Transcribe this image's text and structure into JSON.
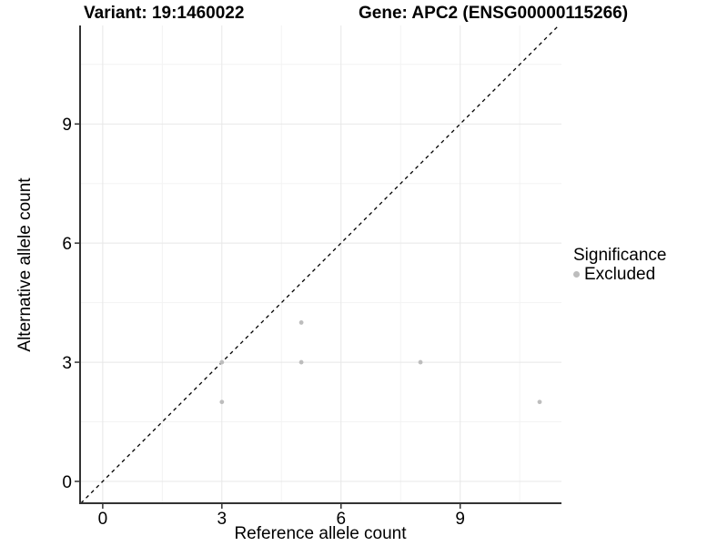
{
  "titles": {
    "variant": "Variant: 19:1460022",
    "gene": "Gene: APC2 (ENSG00000115266)"
  },
  "legend": {
    "title": "Significance",
    "items": [
      {
        "label": "Excluded",
        "color": "#bdbdbd"
      }
    ]
  },
  "chart_data": {
    "type": "scatter",
    "title": "",
    "xlabel": "Reference allele count",
    "ylabel": "Alternative allele count",
    "xlim": [
      -0.57,
      11.55
    ],
    "ylim": [
      -0.55,
      11.48
    ],
    "x_ticks": [
      0,
      3,
      6,
      9
    ],
    "y_ticks": [
      0,
      3,
      6,
      9
    ],
    "x_minor_ticks": [
      1.5,
      4.5,
      7.5,
      10.5
    ],
    "y_minor_ticks": [
      1.5,
      4.5,
      7.5,
      10.5
    ],
    "grid": true,
    "legend_position": "right",
    "series": [
      {
        "name": "Excluded",
        "color": "#bdbdbd",
        "point_radius": 2.4,
        "points": [
          [
            3,
            2
          ],
          [
            3,
            3
          ],
          [
            5,
            3
          ],
          [
            5,
            4
          ],
          [
            8,
            3
          ],
          [
            11,
            2
          ]
        ]
      }
    ],
    "reference_line": {
      "type": "identity",
      "style": "dashed",
      "color": "#000000"
    }
  },
  "colors": {
    "background": "#ffffff",
    "grid_major": "#e7e7e7",
    "grid_minor": "#f3f3f3",
    "axis_line": "#333333",
    "tick_label": "#000000",
    "point": "#bdbdbd"
  }
}
